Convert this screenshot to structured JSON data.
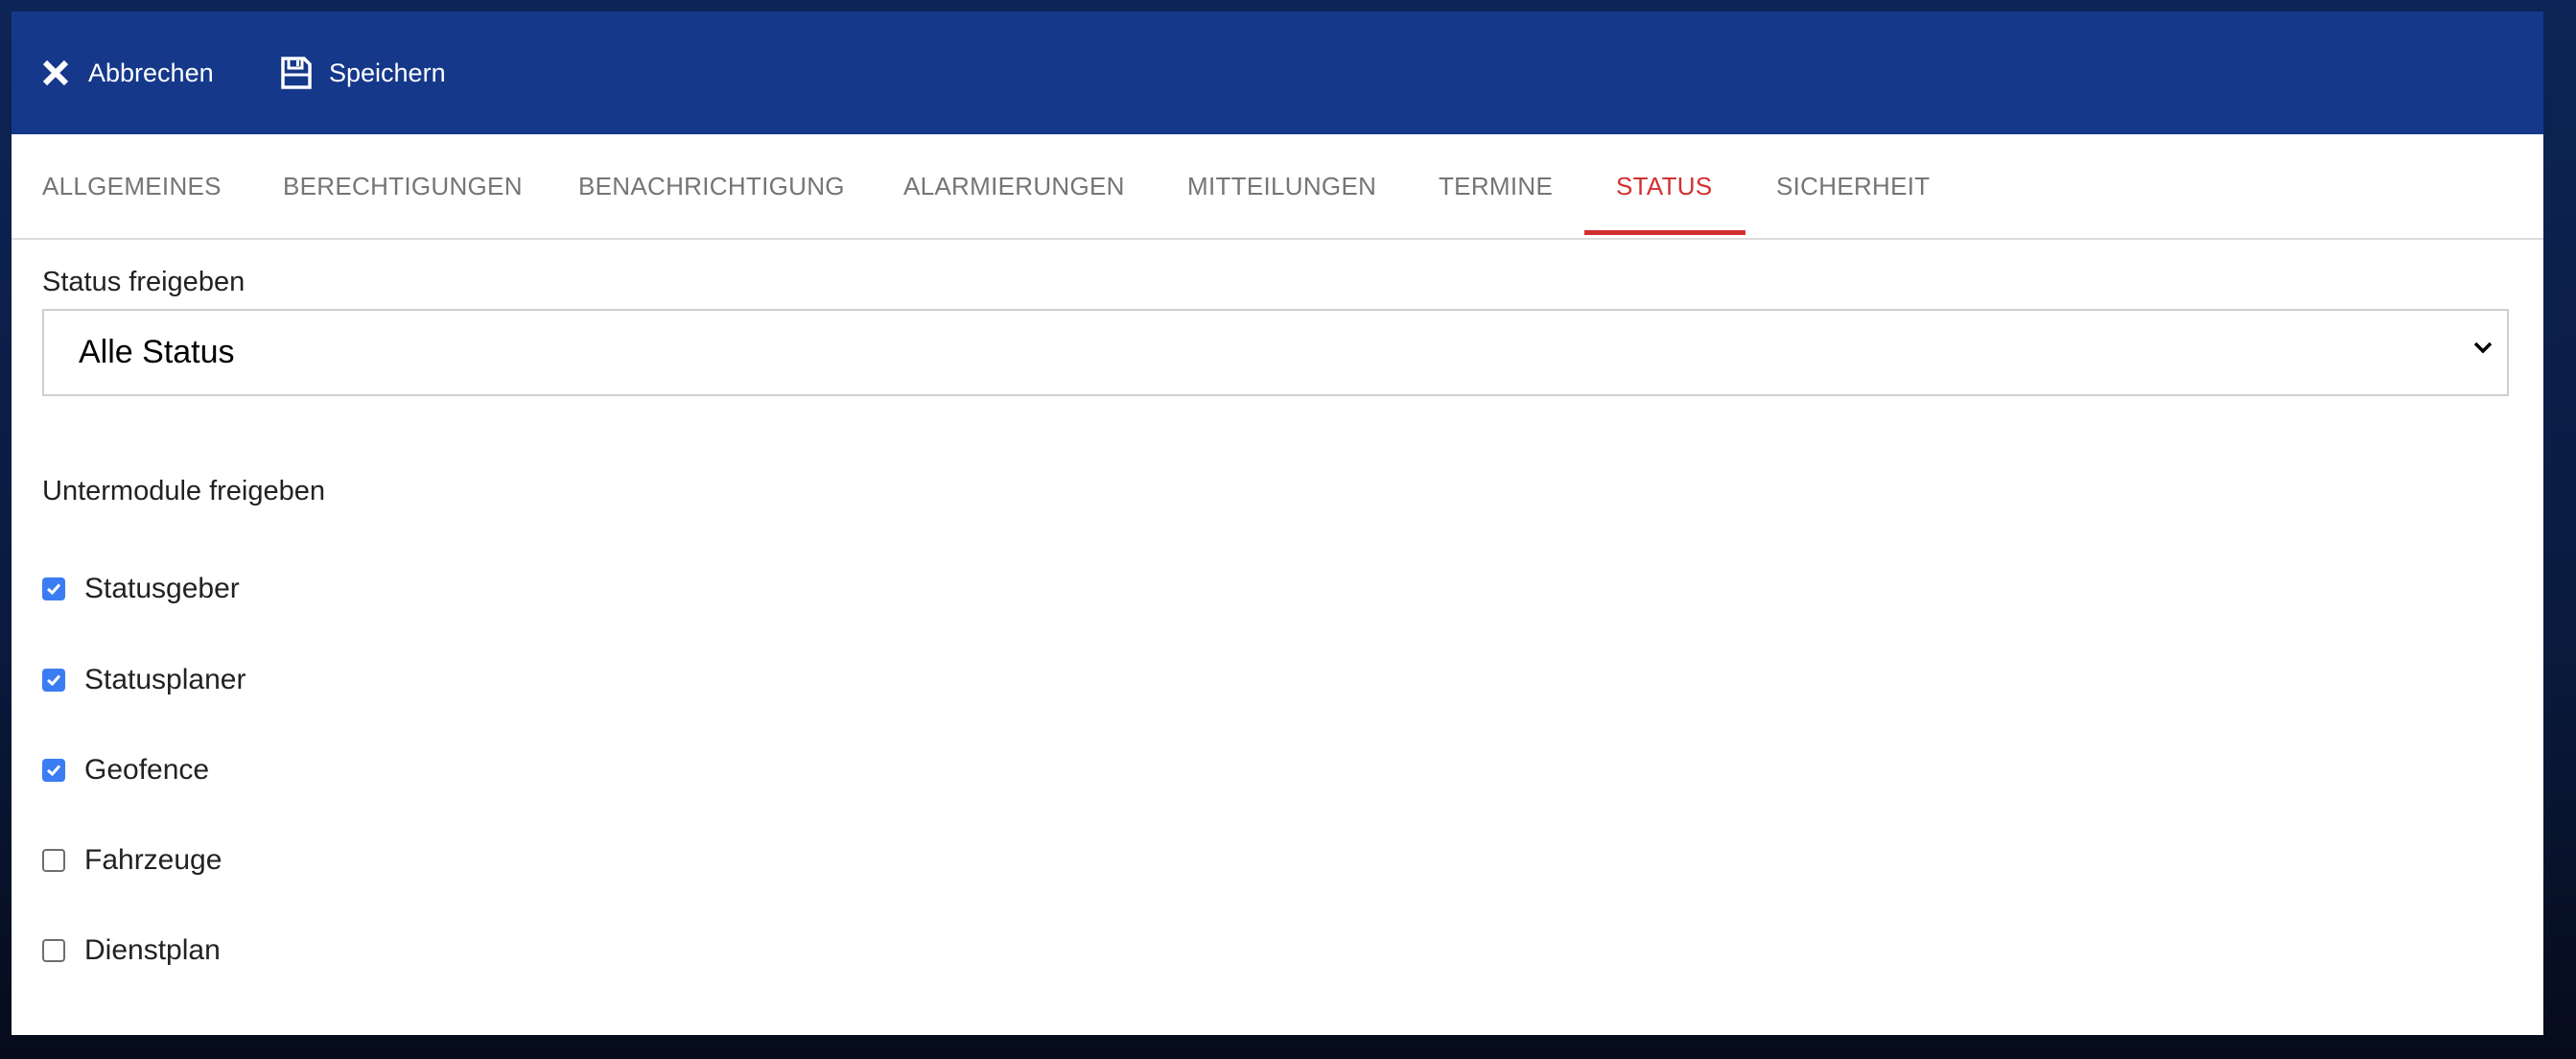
{
  "toolbar": {
    "cancel_label": "Abbrechen",
    "save_label": "Speichern",
    "cancel_icon": "close-icon",
    "save_icon": "floppy-disk-icon",
    "background": "#15388a"
  },
  "tabs": [
    {
      "label": "ALLGEMEINES",
      "active": false
    },
    {
      "label": "BERECHTIGUNGEN",
      "active": false
    },
    {
      "label": "BENACHRICHTIGUNG",
      "active": false
    },
    {
      "label": "ALARMIERUNGEN",
      "active": false
    },
    {
      "label": "MITTEILUNGEN",
      "active": false
    },
    {
      "label": "TERMINE",
      "active": false
    },
    {
      "label": "STATUS",
      "active": true
    },
    {
      "label": "SICHERHEIT",
      "active": false
    }
  ],
  "accent": "#d32f2f",
  "status_field": {
    "label": "Status freigeben",
    "selected": "Alle Status"
  },
  "submodules": {
    "heading": "Untermodule freigeben",
    "items": [
      {
        "label": "Statusgeber",
        "checked": true
      },
      {
        "label": "Statusplaner",
        "checked": true
      },
      {
        "label": "Geofence",
        "checked": true
      },
      {
        "label": "Fahrzeuge",
        "checked": false
      },
      {
        "label": "Dienstplan",
        "checked": false
      }
    ]
  }
}
